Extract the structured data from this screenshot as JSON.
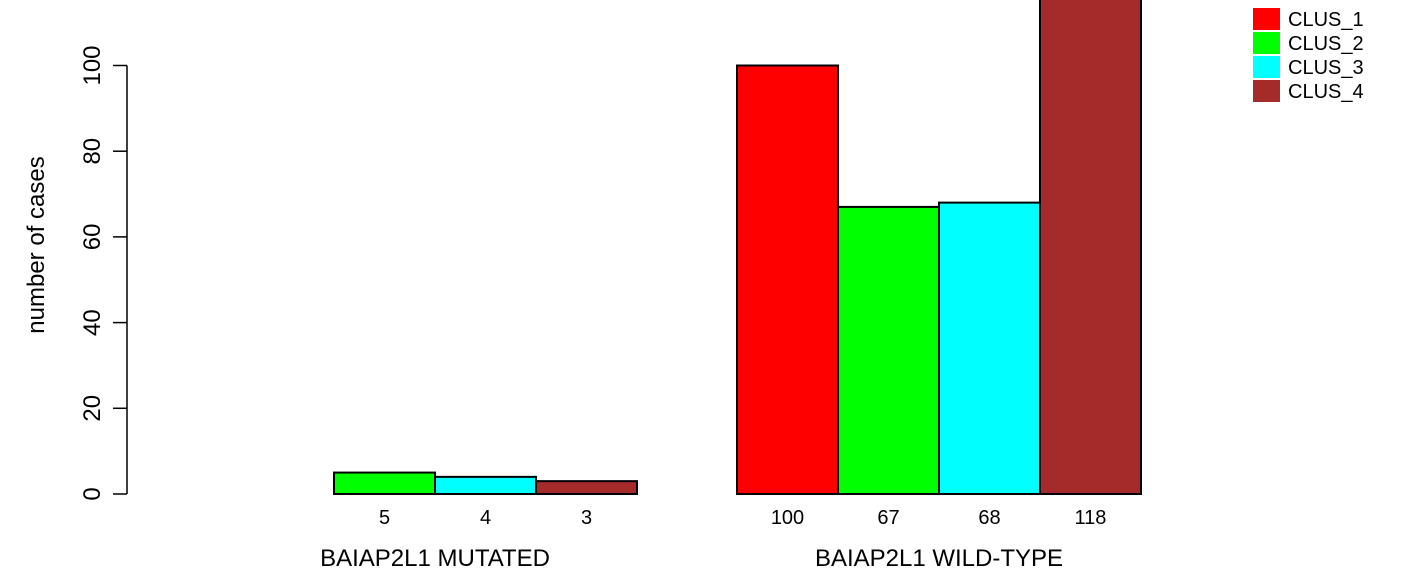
{
  "chart_data": {
    "type": "bar",
    "ylabel": "number of cases",
    "ylim": [
      0,
      120
    ],
    "yticks": [
      0,
      20,
      40,
      60,
      80,
      100
    ],
    "groups": [
      {
        "label": "BAIAP2L1 MUTATED",
        "values": [
          0,
          5,
          4,
          3
        ],
        "value_labels": [
          "",
          "5",
          "4",
          "3"
        ]
      },
      {
        "label": "BAIAP2L1 WILD-TYPE",
        "values": [
          100,
          67,
          68,
          118
        ],
        "value_labels": [
          "100",
          "67",
          "68",
          "118"
        ]
      }
    ],
    "series": [
      {
        "name": "CLUS_1",
        "color": "#ff0000"
      },
      {
        "name": "CLUS_2",
        "color": "#00ff00"
      },
      {
        "name": "CLUS_3",
        "color": "#00ffff"
      },
      {
        "name": "CLUS_4",
        "color": "#a52a2a"
      }
    ],
    "legend_position": "top-right",
    "grid": false
  }
}
